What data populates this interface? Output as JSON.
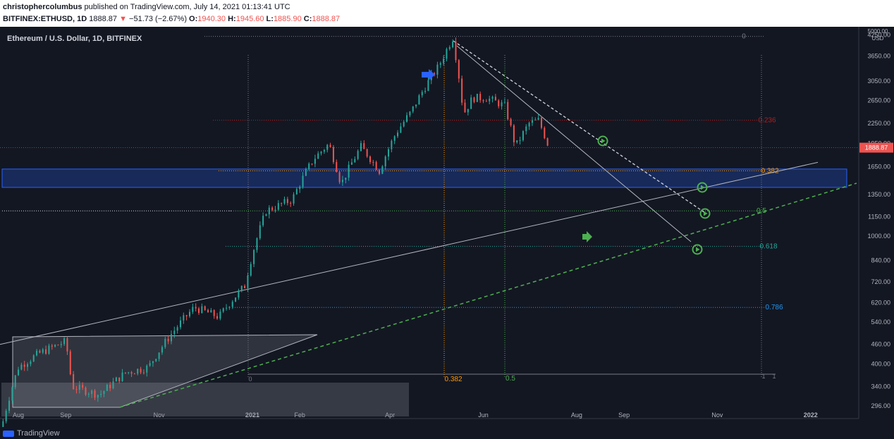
{
  "header": {
    "author": "christophercolumbus",
    "published": "published on TradingView.com, July 14, 2021 01:13:41 UTC",
    "symbol": "BITFINEX:ETHUSD, 1D",
    "last": "1888.87",
    "arrow": "▼",
    "change": "−51.73 (−2.67%)",
    "o_label": "O:",
    "o": "1940.30",
    "h_label": "H:",
    "h": "1945.60",
    "l_label": "L:",
    "l": "1885.90",
    "c_label": "C:",
    "c": "1888.87"
  },
  "footer": {
    "brand": "TradingView"
  },
  "colors": {
    "background": "#131722",
    "up": "#26a69a",
    "down": "#ef5350",
    "fib_0": "#787b86",
    "fib_0236": "#b71c1c",
    "fib_0382": "#ff9800",
    "fib_05": "#4caf50",
    "fib_0618": "#26a69a",
    "fib_0786": "#2196f3",
    "zone": "#2962ff",
    "green_arrow": "#4caf50",
    "blue_arrow": "#2962ff"
  },
  "chart_data": {
    "type": "candlestick",
    "title": "Ethereum / U.S. Dollar, 1D, BITFINEX",
    "price_axis": {
      "unit_label": "USD",
      "scale": "log",
      "ticks": [
        "5000.00",
        "4250.00",
        "3650.00",
        "3050.00",
        "2650.00",
        "2250.00",
        "1950.00",
        "1650.00",
        "1350.00",
        "1150.00",
        "1000.00",
        "840.00",
        "720.00",
        "620.00",
        "540.00",
        "460.00",
        "400.00",
        "340.00",
        "296.00"
      ],
      "last_price_label": "1888.87",
      "range": [
        270,
        5000
      ]
    },
    "time_axis": {
      "ticks": [
        "Aug",
        "Sep",
        "Nov",
        "2021",
        "Feb",
        "Apr",
        "Jun",
        "Aug",
        "Sep",
        "Nov",
        "2022"
      ],
      "range": [
        "2020-07-20",
        "2022-02-01"
      ]
    },
    "series": [
      {
        "name": "ETHUSD",
        "points": [
          {
            "date": "2020-07-20",
            "close": 240
          },
          {
            "date": "2020-08-01",
            "close": 390
          },
          {
            "date": "2020-08-14",
            "close": 430
          },
          {
            "date": "2020-09-01",
            "close": 470
          },
          {
            "date": "2020-09-05",
            "close": 340
          },
          {
            "date": "2020-09-23",
            "close": 320
          },
          {
            "date": "2020-10-10",
            "close": 375
          },
          {
            "date": "2020-10-25",
            "close": 390
          },
          {
            "date": "2020-11-24",
            "close": 600
          },
          {
            "date": "2020-12-10",
            "close": 560
          },
          {
            "date": "2020-12-27",
            "close": 700
          },
          {
            "date": "2021-01-10",
            "close": 1200
          },
          {
            "date": "2021-01-27",
            "close": 1300
          },
          {
            "date": "2021-02-10",
            "close": 1740
          },
          {
            "date": "2021-02-20",
            "close": 1940
          },
          {
            "date": "2021-02-28",
            "close": 1450
          },
          {
            "date": "2021-03-13",
            "close": 1900
          },
          {
            "date": "2021-03-25",
            "close": 1600
          },
          {
            "date": "2021-04-05",
            "close": 2100
          },
          {
            "date": "2021-04-15",
            "close": 2450
          },
          {
            "date": "2021-05-03",
            "close": 3400
          },
          {
            "date": "2021-05-12",
            "close": 4150
          },
          {
            "date": "2021-05-19",
            "close": 2400
          },
          {
            "date": "2021-05-25",
            "close": 2700
          },
          {
            "date": "2021-06-03",
            "close": 2700
          },
          {
            "date": "2021-06-15",
            "close": 2550
          },
          {
            "date": "2021-06-22",
            "close": 1900
          },
          {
            "date": "2021-07-01",
            "close": 2250
          },
          {
            "date": "2021-07-07",
            "close": 2300
          },
          {
            "date": "2021-07-14",
            "close": 1888.87
          }
        ]
      }
    ],
    "fib_levels": [
      {
        "label": "0",
        "price": 4200
      },
      {
        "label": "0.236",
        "price": 2300
      },
      {
        "label": "0.382",
        "price": 1600
      },
      {
        "label": "0.5",
        "price": 1200
      },
      {
        "label": "0.618",
        "price": 930
      },
      {
        "label": "0.786",
        "price": 600
      }
    ],
    "fib_time_labels": [
      "0.382",
      "0.5",
      "1",
      "1",
      "0"
    ],
    "zones": [
      {
        "price_low": 1420,
        "price_high": 1620
      }
    ]
  }
}
